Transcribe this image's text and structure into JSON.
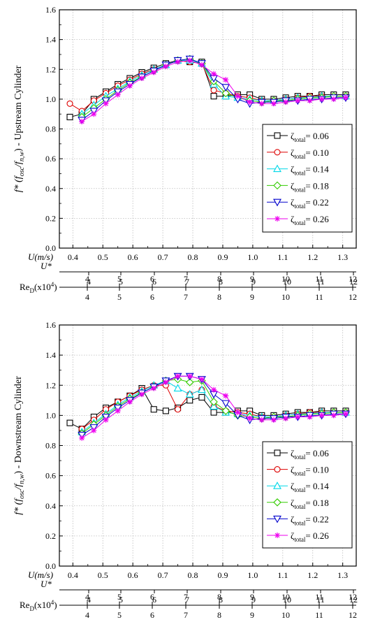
{
  "chart_data": [
    {
      "type": "line",
      "name": "upstream",
      "title": "",
      "ylabel": {
        "main": "f* (f",
        "sub1": "osc",
        "mid": "/f",
        "sub2": "n,w",
        "end": ") - Upstream Cylinder"
      },
      "ylim": [
        0.0,
        1.6
      ],
      "yticks": [
        "0.0",
        "0.2",
        "0.4",
        "0.6",
        "0.8",
        "1.0",
        "1.2",
        "1.4",
        "1.6"
      ],
      "xlim": [
        0.355,
        1.345
      ],
      "xlabel_u": "U(m/s)",
      "xticks_u": [
        "0.4",
        "0.5",
        "0.6",
        "0.7",
        "0.8",
        "0.9",
        "1.0",
        "1.1",
        "1.2",
        "1.3"
      ],
      "xlabel_ustar": "U*",
      "ustar_ticks": [
        "4",
        "5",
        "6",
        "7",
        "8",
        "9",
        "10",
        "11",
        "12"
      ],
      "xlabel_re": "Re",
      "re_sub": "D",
      "re_unit": "(x10",
      "re_exp": "4",
      "re_close": ")",
      "re_ticks": [
        "4",
        "5",
        "6",
        "7",
        "8",
        "9",
        "10",
        "11",
        "12"
      ],
      "grid": true,
      "legend_position": "right",
      "series": [
        {
          "name": "0.06",
          "x": [
            0.39,
            0.43,
            0.47,
            0.51,
            0.55,
            0.59,
            0.63,
            0.67,
            0.71,
            0.75,
            0.79,
            0.83,
            0.87,
            0.91,
            0.95,
            0.99,
            1.03,
            1.07,
            1.11,
            1.15,
            1.19,
            1.23,
            1.27,
            1.31
          ],
          "y": [
            0.88,
            0.9,
            1.0,
            1.05,
            1.1,
            1.14,
            1.18,
            1.21,
            1.24,
            1.26,
            1.25,
            1.25,
            1.02,
            1.02,
            1.03,
            1.03,
            1.0,
            1.0,
            1.01,
            1.02,
            1.02,
            1.03,
            1.03,
            1.03
          ]
        },
        {
          "name": "0.10",
          "x": [
            0.39,
            0.43,
            0.47,
            0.51,
            0.55,
            0.59,
            0.63,
            0.67,
            0.71,
            0.75,
            0.79,
            0.83,
            0.87,
            0.91,
            0.95,
            0.99,
            1.03,
            1.07,
            1.11,
            1.15,
            1.19,
            1.23,
            1.27,
            1.31
          ],
          "y": [
            0.97,
            0.92,
            0.99,
            1.04,
            1.09,
            1.13,
            1.17,
            1.2,
            1.23,
            1.26,
            1.25,
            1.24,
            1.06,
            1.04,
            1.02,
            1.01,
            0.99,
            0.99,
            1.0,
            1.01,
            1.02,
            1.02,
            1.02,
            1.02
          ]
        },
        {
          "name": "0.14",
          "x": [
            0.43,
            0.47,
            0.51,
            0.55,
            0.59,
            0.63,
            0.67,
            0.71,
            0.75,
            0.79,
            0.83,
            0.87,
            0.91,
            0.95,
            0.99,
            1.03,
            1.07,
            1.11,
            1.15,
            1.19,
            1.23,
            1.27,
            1.31
          ],
          "y": [
            0.9,
            0.96,
            1.02,
            1.07,
            1.12,
            1.16,
            1.2,
            1.23,
            1.26,
            1.26,
            1.24,
            1.1,
            1.02,
            1.01,
            1.0,
            0.99,
            0.99,
            1.0,
            1.01,
            1.01,
            1.02,
            1.02,
            1.02
          ]
        },
        {
          "name": "0.18",
          "x": [
            0.43,
            0.47,
            0.51,
            0.55,
            0.59,
            0.63,
            0.67,
            0.71,
            0.75,
            0.79,
            0.83,
            0.87,
            0.91,
            0.95,
            0.99,
            1.03,
            1.07,
            1.11,
            1.15,
            1.19,
            1.23,
            1.27,
            1.31
          ],
          "y": [
            0.88,
            0.94,
            1.0,
            1.06,
            1.11,
            1.15,
            1.19,
            1.23,
            1.26,
            1.27,
            1.24,
            1.12,
            1.04,
            1.01,
            0.99,
            0.98,
            0.99,
            0.99,
            1.0,
            1.01,
            1.01,
            1.02,
            1.02
          ]
        },
        {
          "name": "0.22",
          "x": [
            0.43,
            0.47,
            0.51,
            0.55,
            0.59,
            0.63,
            0.67,
            0.71,
            0.75,
            0.79,
            0.83,
            0.87,
            0.91,
            0.95,
            0.99,
            1.03,
            1.07,
            1.11,
            1.15,
            1.19,
            1.23,
            1.27,
            1.31
          ],
          "y": [
            0.86,
            0.92,
            0.99,
            1.05,
            1.1,
            1.15,
            1.19,
            1.23,
            1.26,
            1.27,
            1.24,
            1.14,
            1.08,
            1.0,
            0.97,
            0.98,
            0.98,
            0.99,
            0.99,
            1.0,
            1.0,
            1.01,
            1.01
          ]
        },
        {
          "name": "0.26",
          "x": [
            0.43,
            0.47,
            0.51,
            0.55,
            0.59,
            0.63,
            0.67,
            0.71,
            0.75,
            0.79,
            0.83,
            0.87,
            0.91,
            0.95,
            0.99,
            1.03,
            1.07,
            1.11,
            1.15,
            1.19,
            1.23,
            1.27,
            1.31
          ],
          "y": [
            0.85,
            0.9,
            0.97,
            1.03,
            1.09,
            1.14,
            1.18,
            1.22,
            1.25,
            1.26,
            1.23,
            1.17,
            1.13,
            1.02,
            0.98,
            0.97,
            0.97,
            0.98,
            0.99,
            0.99,
            1.0,
            1.0,
            1.01
          ]
        }
      ]
    },
    {
      "type": "line",
      "name": "downstream",
      "title": "",
      "ylabel": {
        "main": "f* (f",
        "sub1": "osc",
        "mid": "/f",
        "sub2": "n,w",
        "end": ") - Downstream Cylinder"
      },
      "ylim": [
        0.0,
        1.6
      ],
      "yticks": [
        "0.0",
        "0.2",
        "0.4",
        "0.6",
        "0.8",
        "1.0",
        "1.2",
        "1.4",
        "1.6"
      ],
      "xlim": [
        0.355,
        1.345
      ],
      "xlabel_u": "U(m/s)",
      "xticks_u": [
        "0.4",
        "0.5",
        "0.6",
        "0.7",
        "0.8",
        "0.9",
        "1.0",
        "1.1",
        "1.2",
        "1.3"
      ],
      "xlabel_ustar": "U*",
      "ustar_ticks": [
        "4",
        "5",
        "6",
        "7",
        "8",
        "9",
        "10",
        "11",
        "12"
      ],
      "xlabel_re": "Re",
      "re_sub": "D",
      "re_unit": "(x10",
      "re_exp": "4",
      "re_close": ")",
      "re_ticks": [
        "4",
        "5",
        "6",
        "7",
        "8",
        "9",
        "10",
        "11",
        "12"
      ],
      "grid": true,
      "legend_position": "bottom-right",
      "series": [
        {
          "name": "0.06",
          "x": [
            0.39,
            0.43,
            0.47,
            0.51,
            0.55,
            0.59,
            0.63,
            0.67,
            0.71,
            0.75,
            0.79,
            0.83,
            0.87,
            0.91,
            0.95,
            0.99,
            1.03,
            1.07,
            1.11,
            1.15,
            1.19,
            1.23,
            1.27,
            1.31
          ],
          "y": [
            0.95,
            0.91,
            0.99,
            1.05,
            1.09,
            1.13,
            1.18,
            1.04,
            1.03,
            1.05,
            1.1,
            1.12,
            1.02,
            1.02,
            1.03,
            1.03,
            1.0,
            1.0,
            1.01,
            1.02,
            1.02,
            1.03,
            1.03,
            1.03
          ]
        },
        {
          "name": "0.10",
          "x": [
            0.43,
            0.47,
            0.51,
            0.55,
            0.59,
            0.63,
            0.67,
            0.71,
            0.75,
            0.79,
            0.83,
            0.87,
            0.91,
            0.95,
            0.99,
            1.03,
            1.07,
            1.11,
            1.15,
            1.19,
            1.23,
            1.27,
            1.31
          ],
          "y": [
            0.91,
            0.97,
            1.04,
            1.09,
            1.13,
            1.17,
            1.2,
            1.2,
            1.04,
            1.14,
            1.17,
            1.06,
            1.03,
            1.02,
            1.01,
            0.99,
            0.99,
            1.0,
            1.01,
            1.02,
            1.02,
            1.02,
            1.02
          ]
        },
        {
          "name": "0.14",
          "x": [
            0.43,
            0.47,
            0.51,
            0.55,
            0.59,
            0.63,
            0.67,
            0.71,
            0.75,
            0.79,
            0.83,
            0.87,
            0.91,
            0.95,
            0.99,
            1.03,
            1.07,
            1.11,
            1.15,
            1.19,
            1.23,
            1.27,
            1.31
          ],
          "y": [
            0.89,
            0.95,
            1.01,
            1.07,
            1.12,
            1.16,
            1.2,
            1.23,
            1.18,
            1.14,
            1.17,
            1.06,
            1.02,
            1.01,
            1.0,
            0.99,
            0.99,
            1.0,
            1.01,
            1.01,
            1.02,
            1.02,
            1.02
          ]
        },
        {
          "name": "0.18",
          "x": [
            0.43,
            0.47,
            0.51,
            0.55,
            0.59,
            0.63,
            0.67,
            0.71,
            0.75,
            0.79,
            0.83,
            0.87,
            0.91,
            0.95,
            0.99,
            1.03,
            1.07,
            1.11,
            1.15,
            1.19,
            1.23,
            1.27,
            1.31
          ],
          "y": [
            0.88,
            0.94,
            1.0,
            1.06,
            1.11,
            1.15,
            1.19,
            1.23,
            1.24,
            1.22,
            1.23,
            1.09,
            1.03,
            1.0,
            0.99,
            0.98,
            0.99,
            0.99,
            1.0,
            1.01,
            1.01,
            1.02,
            1.02
          ]
        },
        {
          "name": "0.22",
          "x": [
            0.43,
            0.47,
            0.51,
            0.55,
            0.59,
            0.63,
            0.67,
            0.71,
            0.75,
            0.79,
            0.83,
            0.87,
            0.91,
            0.95,
            0.99,
            1.03,
            1.07,
            1.11,
            1.15,
            1.19,
            1.23,
            1.27,
            1.31
          ],
          "y": [
            0.87,
            0.92,
            0.99,
            1.05,
            1.1,
            1.15,
            1.19,
            1.23,
            1.26,
            1.26,
            1.24,
            1.14,
            1.08,
            1.0,
            0.97,
            0.98,
            0.98,
            0.99,
            0.99,
            1.0,
            1.0,
            1.01,
            1.01
          ]
        },
        {
          "name": "0.26",
          "x": [
            0.43,
            0.47,
            0.51,
            0.55,
            0.59,
            0.63,
            0.67,
            0.71,
            0.75,
            0.79,
            0.83,
            0.87,
            0.91,
            0.95,
            0.99,
            1.03,
            1.07,
            1.11,
            1.15,
            1.19,
            1.23,
            1.27,
            1.31
          ],
          "y": [
            0.85,
            0.9,
            0.97,
            1.03,
            1.09,
            1.14,
            1.18,
            1.22,
            1.26,
            1.26,
            1.24,
            1.17,
            1.13,
            1.02,
            0.98,
            0.97,
            0.97,
            0.98,
            0.99,
            0.99,
            1.0,
            1.0,
            1.01
          ]
        }
      ]
    }
  ],
  "legend": {
    "symbol": "ζ",
    "sub": "total",
    "eq": "="
  },
  "style": {
    "colors": [
      "#000000",
      "#dd0000",
      "#00d8e8",
      "#33cc00",
      "#0000cc",
      "#ee00ee"
    ],
    "markers": [
      "square",
      "circle",
      "triangle-up",
      "diamond",
      "triangle-down",
      "asterisk"
    ]
  }
}
